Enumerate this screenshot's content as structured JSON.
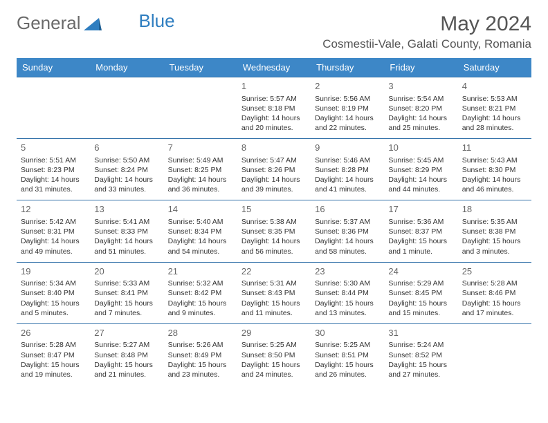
{
  "brand": {
    "word1": "General",
    "word2": "Blue"
  },
  "title": "May 2024",
  "location": "Cosmestii-Vale, Galati County, Romania",
  "colors": {
    "header_bg": "#3d87c7",
    "header_text": "#ffffff",
    "row_border": "#2f6fa8",
    "brand_gray": "#6a6a6a",
    "brand_blue": "#2f7ec0",
    "body_text": "#333333",
    "daynum_text": "#666666"
  },
  "weekdays": [
    "Sunday",
    "Monday",
    "Tuesday",
    "Wednesday",
    "Thursday",
    "Friday",
    "Saturday"
  ],
  "weeks": [
    [
      null,
      null,
      null,
      {
        "n": "1",
        "sr": "5:57 AM",
        "ss": "8:18 PM",
        "dl": "14 hours and 20 minutes."
      },
      {
        "n": "2",
        "sr": "5:56 AM",
        "ss": "8:19 PM",
        "dl": "14 hours and 22 minutes."
      },
      {
        "n": "3",
        "sr": "5:54 AM",
        "ss": "8:20 PM",
        "dl": "14 hours and 25 minutes."
      },
      {
        "n": "4",
        "sr": "5:53 AM",
        "ss": "8:21 PM",
        "dl": "14 hours and 28 minutes."
      }
    ],
    [
      {
        "n": "5",
        "sr": "5:51 AM",
        "ss": "8:23 PM",
        "dl": "14 hours and 31 minutes."
      },
      {
        "n": "6",
        "sr": "5:50 AM",
        "ss": "8:24 PM",
        "dl": "14 hours and 33 minutes."
      },
      {
        "n": "7",
        "sr": "5:49 AM",
        "ss": "8:25 PM",
        "dl": "14 hours and 36 minutes."
      },
      {
        "n": "8",
        "sr": "5:47 AM",
        "ss": "8:26 PM",
        "dl": "14 hours and 39 minutes."
      },
      {
        "n": "9",
        "sr": "5:46 AM",
        "ss": "8:28 PM",
        "dl": "14 hours and 41 minutes."
      },
      {
        "n": "10",
        "sr": "5:45 AM",
        "ss": "8:29 PM",
        "dl": "14 hours and 44 minutes."
      },
      {
        "n": "11",
        "sr": "5:43 AM",
        "ss": "8:30 PM",
        "dl": "14 hours and 46 minutes."
      }
    ],
    [
      {
        "n": "12",
        "sr": "5:42 AM",
        "ss": "8:31 PM",
        "dl": "14 hours and 49 minutes."
      },
      {
        "n": "13",
        "sr": "5:41 AM",
        "ss": "8:33 PM",
        "dl": "14 hours and 51 minutes."
      },
      {
        "n": "14",
        "sr": "5:40 AM",
        "ss": "8:34 PM",
        "dl": "14 hours and 54 minutes."
      },
      {
        "n": "15",
        "sr": "5:38 AM",
        "ss": "8:35 PM",
        "dl": "14 hours and 56 minutes."
      },
      {
        "n": "16",
        "sr": "5:37 AM",
        "ss": "8:36 PM",
        "dl": "14 hours and 58 minutes."
      },
      {
        "n": "17",
        "sr": "5:36 AM",
        "ss": "8:37 PM",
        "dl": "15 hours and 1 minute."
      },
      {
        "n": "18",
        "sr": "5:35 AM",
        "ss": "8:38 PM",
        "dl": "15 hours and 3 minutes."
      }
    ],
    [
      {
        "n": "19",
        "sr": "5:34 AM",
        "ss": "8:40 PM",
        "dl": "15 hours and 5 minutes."
      },
      {
        "n": "20",
        "sr": "5:33 AM",
        "ss": "8:41 PM",
        "dl": "15 hours and 7 minutes."
      },
      {
        "n": "21",
        "sr": "5:32 AM",
        "ss": "8:42 PM",
        "dl": "15 hours and 9 minutes."
      },
      {
        "n": "22",
        "sr": "5:31 AM",
        "ss": "8:43 PM",
        "dl": "15 hours and 11 minutes."
      },
      {
        "n": "23",
        "sr": "5:30 AM",
        "ss": "8:44 PM",
        "dl": "15 hours and 13 minutes."
      },
      {
        "n": "24",
        "sr": "5:29 AM",
        "ss": "8:45 PM",
        "dl": "15 hours and 15 minutes."
      },
      {
        "n": "25",
        "sr": "5:28 AM",
        "ss": "8:46 PM",
        "dl": "15 hours and 17 minutes."
      }
    ],
    [
      {
        "n": "26",
        "sr": "5:28 AM",
        "ss": "8:47 PM",
        "dl": "15 hours and 19 minutes."
      },
      {
        "n": "27",
        "sr": "5:27 AM",
        "ss": "8:48 PM",
        "dl": "15 hours and 21 minutes."
      },
      {
        "n": "28",
        "sr": "5:26 AM",
        "ss": "8:49 PM",
        "dl": "15 hours and 23 minutes."
      },
      {
        "n": "29",
        "sr": "5:25 AM",
        "ss": "8:50 PM",
        "dl": "15 hours and 24 minutes."
      },
      {
        "n": "30",
        "sr": "5:25 AM",
        "ss": "8:51 PM",
        "dl": "15 hours and 26 minutes."
      },
      {
        "n": "31",
        "sr": "5:24 AM",
        "ss": "8:52 PM",
        "dl": "15 hours and 27 minutes."
      },
      null
    ]
  ],
  "labels": {
    "sunrise": "Sunrise: ",
    "sunset": "Sunset: ",
    "daylight": "Daylight: "
  }
}
